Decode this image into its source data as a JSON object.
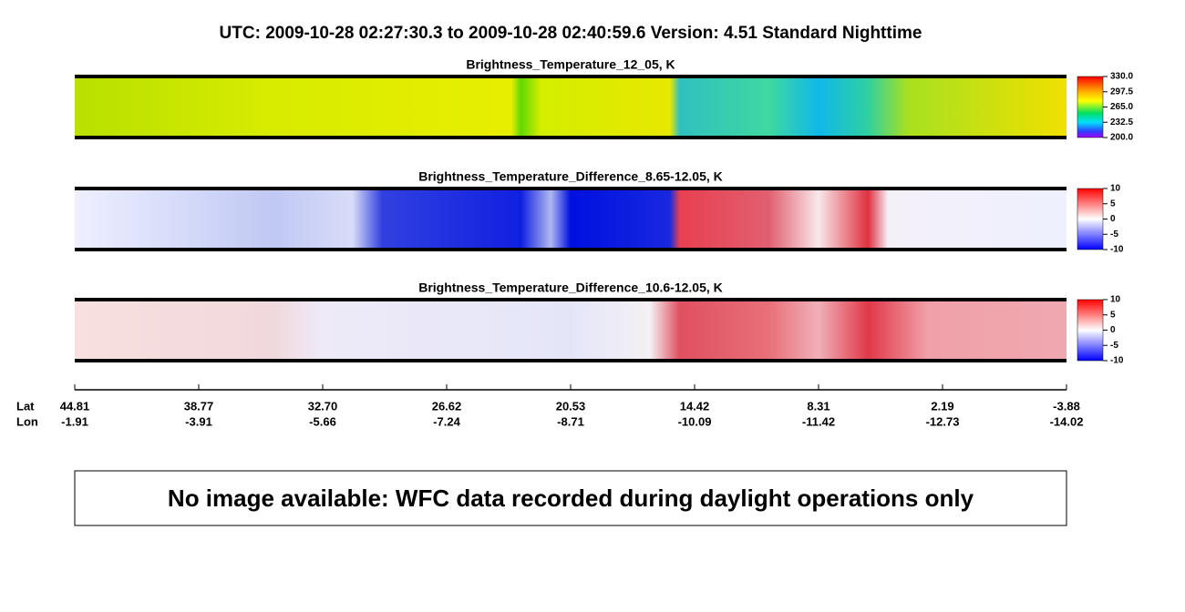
{
  "header": {
    "title": "UTC:  2009-10-28   02:27:30.3  to  2009-10-28   02:40:59.6    Version: 4.51  Standard Nighttime"
  },
  "panels": [
    {
      "title": "Brightness_Temperature_12_05, K",
      "colorbar": [
        "330.0",
        "297.5",
        "265.0",
        "232.5",
        "200.0"
      ]
    },
    {
      "title": "Brightness_Temperature_Difference_8.65-12.05, K",
      "colorbar": [
        "10",
        "5",
        "0",
        "-5",
        "-10"
      ]
    },
    {
      "title": "Brightness_Temperature_Difference_10.6-12.05, K",
      "colorbar": [
        "10",
        "5",
        "0",
        "-5",
        "-10"
      ]
    }
  ],
  "axis": {
    "lat_label": "Lat",
    "lon_label": "Lon",
    "lat": [
      "44.81",
      "38.77",
      "32.70",
      "26.62",
      "20.53",
      "14.42",
      "8.31",
      "2.19",
      "-3.88"
    ],
    "lon": [
      "-1.91",
      "-3.91",
      "-5.66",
      "-7.24",
      "-8.71",
      "-10.09",
      "-11.42",
      "-12.73",
      "-14.02"
    ]
  },
  "message": "No image available: WFC data recorded during daylight operations only"
}
